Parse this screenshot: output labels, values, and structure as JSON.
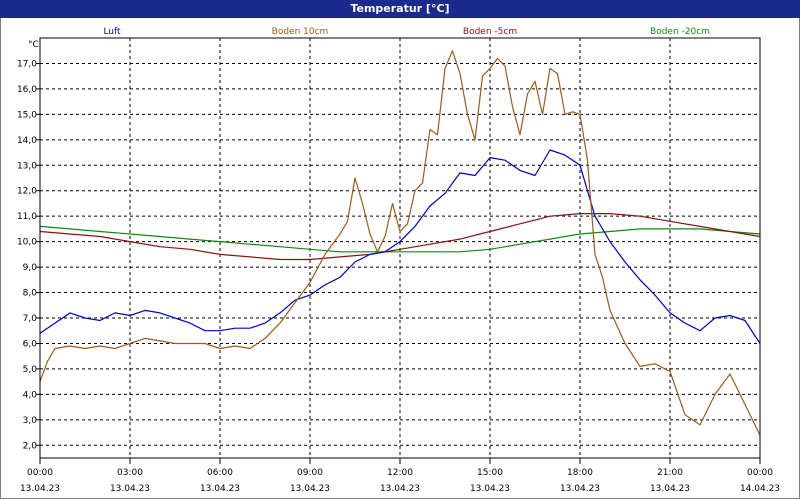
{
  "window": {
    "title": "Temperatur [°C]"
  },
  "chart_data": {
    "type": "line",
    "title": "Temperatur [°C]",
    "ylabel": "°C",
    "ylim": [
      1.5,
      18.0
    ],
    "y_ticks": [
      2.0,
      3.0,
      4.0,
      5.0,
      6.0,
      7.0,
      8.0,
      9.0,
      10.0,
      11.0,
      12.0,
      13.0,
      14.0,
      15.0,
      16.0,
      17.0
    ],
    "y_tick_labels": [
      "2,0",
      "3,0",
      "4,0",
      "5,0",
      "6,0",
      "7,0",
      "8,0",
      "9,0",
      "10,0",
      "11,0",
      "12,0",
      "13,0",
      "14,0",
      "15,0",
      "16,0",
      "17,0"
    ],
    "xlim": [
      0,
      24
    ],
    "x_ticks": [
      0,
      3,
      6,
      9,
      12,
      15,
      18,
      21,
      24
    ],
    "x_tick_times": [
      "00:00",
      "03:00",
      "06:00",
      "09:00",
      "12:00",
      "15:00",
      "18:00",
      "21:00",
      "00:00"
    ],
    "x_tick_dates": [
      "13.04.23",
      "13.04.23",
      "13.04.23",
      "13.04.23",
      "13.04.23",
      "13.04.23",
      "13.04.23",
      "13.04.23",
      "14.04.23"
    ],
    "grid": true,
    "legend_position": "top",
    "series": [
      {
        "name": "Luft",
        "color": "#0000cc",
        "x": [
          0,
          0.5,
          1,
          1.5,
          2,
          2.5,
          3,
          3.5,
          4,
          4.5,
          5,
          5.5,
          6,
          6.5,
          7,
          7.5,
          8,
          8.5,
          9,
          9.5,
          10,
          10.5,
          11,
          11.5,
          12,
          12.5,
          13,
          13.5,
          14,
          14.5,
          15,
          15.5,
          16,
          16.5,
          17,
          17.5,
          18,
          18.5,
          19,
          19.5,
          20,
          20.5,
          21,
          21.5,
          22,
          22.5,
          23,
          23.5,
          24
        ],
        "y": [
          6.4,
          6.8,
          7.2,
          7.0,
          6.9,
          7.2,
          7.1,
          7.3,
          7.2,
          7.0,
          6.8,
          6.5,
          6.5,
          6.6,
          6.6,
          6.8,
          7.2,
          7.7,
          7.9,
          8.3,
          8.6,
          9.2,
          9.5,
          9.6,
          10.0,
          10.6,
          11.4,
          11.9,
          12.7,
          12.6,
          13.3,
          13.2,
          12.8,
          12.6,
          13.6,
          13.4,
          13.0,
          11.0,
          10.0,
          9.2,
          8.5,
          7.9,
          7.2,
          6.8,
          6.5,
          7.0,
          7.1,
          6.9,
          6.0
        ]
      },
      {
        "name": "Boden 10cm",
        "color": "#a05a14",
        "x": [
          0,
          0.25,
          0.5,
          1,
          1.5,
          2,
          2.5,
          3,
          3.5,
          4,
          4.5,
          5,
          5.5,
          6,
          6.5,
          7,
          7.5,
          8,
          8.5,
          9,
          9.5,
          10,
          10.25,
          10.5,
          10.75,
          11,
          11.25,
          11.5,
          11.75,
          12,
          12.25,
          12.5,
          12.75,
          13,
          13.25,
          13.5,
          13.75,
          14,
          14.25,
          14.5,
          14.75,
          15,
          15.25,
          15.5,
          15.75,
          16,
          16.25,
          16.5,
          16.75,
          17,
          17.25,
          17.5,
          17.75,
          18,
          18.25,
          18.5,
          18.75,
          19,
          19.5,
          20,
          20.5,
          21,
          21.5,
          22,
          22.5,
          23,
          23.5,
          24
        ],
        "y": [
          4.5,
          5.3,
          5.8,
          5.9,
          5.8,
          5.9,
          5.8,
          6.0,
          6.2,
          6.1,
          6.0,
          6.0,
          6.0,
          5.8,
          5.9,
          5.8,
          6.2,
          6.8,
          7.6,
          8.4,
          9.5,
          10.3,
          10.8,
          12.5,
          11.5,
          10.3,
          9.6,
          10.2,
          11.5,
          10.4,
          10.7,
          12.0,
          12.3,
          14.4,
          14.2,
          16.8,
          17.5,
          16.6,
          15.0,
          14.0,
          16.5,
          16.8,
          17.2,
          16.9,
          15.3,
          14.2,
          15.8,
          16.3,
          15.0,
          16.8,
          16.6,
          15.0,
          15.1,
          15.0,
          13.2,
          9.5,
          8.6,
          7.3,
          6.0,
          5.1,
          5.2,
          4.9,
          3.2,
          2.8,
          4.0,
          4.8,
          3.6,
          2.4
        ]
      },
      {
        "name": "Boden -5cm",
        "color": "#8b1010",
        "x": [
          0,
          1,
          2,
          3,
          4,
          5,
          6,
          7,
          8,
          9,
          10,
          11,
          12,
          13,
          14,
          15,
          16,
          17,
          18,
          19,
          20,
          21,
          22,
          23,
          24
        ],
        "y": [
          10.4,
          10.3,
          10.2,
          10.0,
          9.8,
          9.7,
          9.5,
          9.4,
          9.3,
          9.3,
          9.4,
          9.5,
          9.7,
          9.9,
          10.1,
          10.4,
          10.7,
          11.0,
          11.1,
          11.1,
          11.0,
          10.8,
          10.6,
          10.4,
          10.2
        ]
      },
      {
        "name": "Boden -20cm",
        "color": "#108a10",
        "x": [
          0,
          1,
          2,
          3,
          4,
          5,
          6,
          7,
          8,
          9,
          10,
          11,
          12,
          13,
          14,
          15,
          16,
          17,
          18,
          19,
          20,
          21,
          22,
          23,
          24
        ],
        "y": [
          10.6,
          10.5,
          10.4,
          10.3,
          10.2,
          10.1,
          10.0,
          9.9,
          9.8,
          9.7,
          9.6,
          9.6,
          9.6,
          9.6,
          9.6,
          9.7,
          9.9,
          10.1,
          10.3,
          10.4,
          10.5,
          10.5,
          10.5,
          10.4,
          10.3
        ]
      }
    ]
  }
}
